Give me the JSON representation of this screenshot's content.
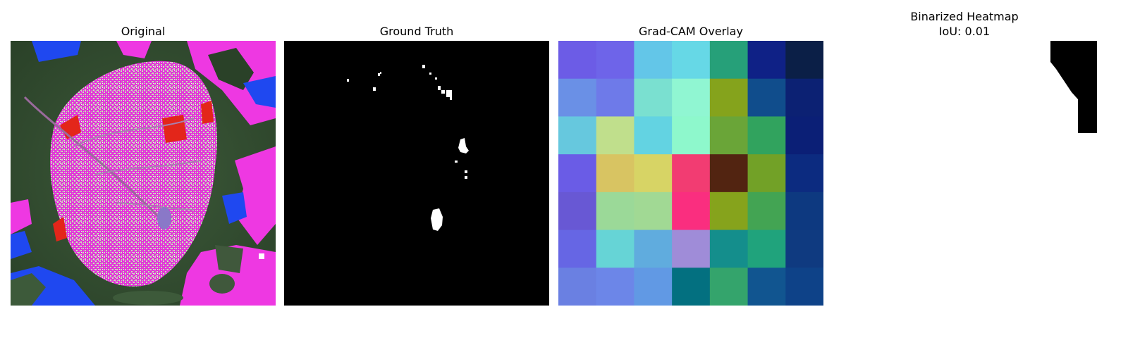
{
  "panels": {
    "original": {
      "title": "Original"
    },
    "ground_truth": {
      "title": "Ground Truth"
    },
    "gradcam": {
      "title": "Grad-CAM Overlay",
      "grid": [
        [
          "#6c5ce6",
          "#6e64e9",
          "#63c6e8",
          "#66d8e6",
          "#26a079",
          "#0f2186",
          "#0b1f47"
        ],
        [
          "#6a90e6",
          "#6e7ae9",
          "#7ae0d0",
          "#90f6d2",
          "#85a31c",
          "#104d8c",
          "#0c2173"
        ],
        [
          "#66c8de",
          "#c0df8c",
          "#63d3e2",
          "#8ef8cc",
          "#6aa538",
          "#31a35e",
          "#0b1f76"
        ],
        [
          "#6a5ce6",
          "#d8c462",
          "#d7d465",
          "#f23c72",
          "#522411",
          "#72a127",
          "#0c2b80"
        ],
        [
          "#6858d4",
          "#9bd998",
          "#a1d994",
          "#fa2e7f",
          "#86a31c",
          "#43a453",
          "#0d3980"
        ],
        [
          "#6666e4",
          "#66d4d6",
          "#60acde",
          "#9f8cd8",
          "#148e8c",
          "#20a37c",
          "#0f3a80"
        ],
        [
          "#6a80e2",
          "#6c86e8",
          "#6199e4",
          "#037080",
          "#34a46c",
          "#115590",
          "#0e4288"
        ]
      ]
    },
    "binarized": {
      "title": "Binarized Heatmap",
      "iou_label": "IoU: 0.01"
    }
  }
}
